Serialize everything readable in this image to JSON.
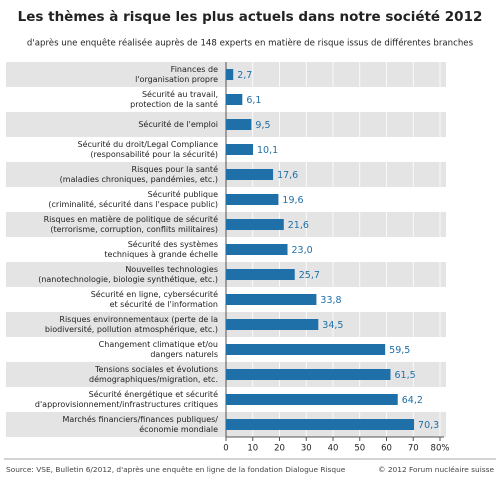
{
  "chart_data": {
    "type": "bar",
    "orientation": "horizontal",
    "title": "Les thèmes à risque les plus actuels dans notre société 2012",
    "subtitle": "d'après une enquête réalisée auprès de 148 experts en matière de risque issus de différentes branches",
    "categories": [
      [
        "Finances de",
        "l'organisation propre"
      ],
      [
        "Sécurité au travail,",
        "protection de la santé"
      ],
      [
        "Sécurité de l'emploi"
      ],
      [
        "Sécurité du droit/Legal Compliance",
        "(responsabilité pour la sécurité)"
      ],
      [
        "Risques pour la santé",
        "(maladies chroniques, pandémies, etc.)"
      ],
      [
        "Sécurité publique",
        "(criminalité, sécurité dans l'espace public)"
      ],
      [
        "Risques en matière de politique de sécurité",
        "(terrorisme, corruption, conflits militaires)"
      ],
      [
        "Sécurité des systèmes",
        "techniques à grande échelle"
      ],
      [
        "Nouvelles technologies",
        "(nanotechnologie, biologie synthétique, etc.)"
      ],
      [
        "Sécurité en ligne, cybersécurité",
        "et sécurité de l'information"
      ],
      [
        "Risques environnementaux (perte de la",
        "biodiversité, pollution atmosphérique, etc.)"
      ],
      [
        "Changement climatique et/ou",
        "dangers naturels"
      ],
      [
        "Tensions sociales et évolutions",
        "démographiques/migration, etc."
      ],
      [
        "Sécurité énergétique et sécurité",
        "d'approvisionnement/infrastructures critiques"
      ],
      [
        "Marchés financiers/finances publiques/",
        "économie mondiale"
      ]
    ],
    "values": [
      2.7,
      6.1,
      9.5,
      10.1,
      17.6,
      19.6,
      21.6,
      23.0,
      25.7,
      33.8,
      34.5,
      59.5,
      61.5,
      64.2,
      70.3
    ],
    "value_labels": [
      "2,7",
      "6,1",
      "9,5",
      "10,1",
      "17,6",
      "19,6",
      "21,6",
      "23,0",
      "25,7",
      "33,8",
      "34,5",
      "59,5",
      "61,5",
      "64,2",
      "70,3"
    ],
    "color": "#1f70a8",
    "xlim": [
      0,
      80
    ],
    "xticks": [
      0,
      10,
      20,
      30,
      40,
      50,
      60,
      70,
      {
        "value": 80,
        "label": "80%"
      }
    ],
    "source": "Source: VSE, Bulletin 6/2012, d'après une enquête en ligne de la fondation Dialogue Risque",
    "copyright": "© 2012 Forum nucléaire suisse"
  }
}
